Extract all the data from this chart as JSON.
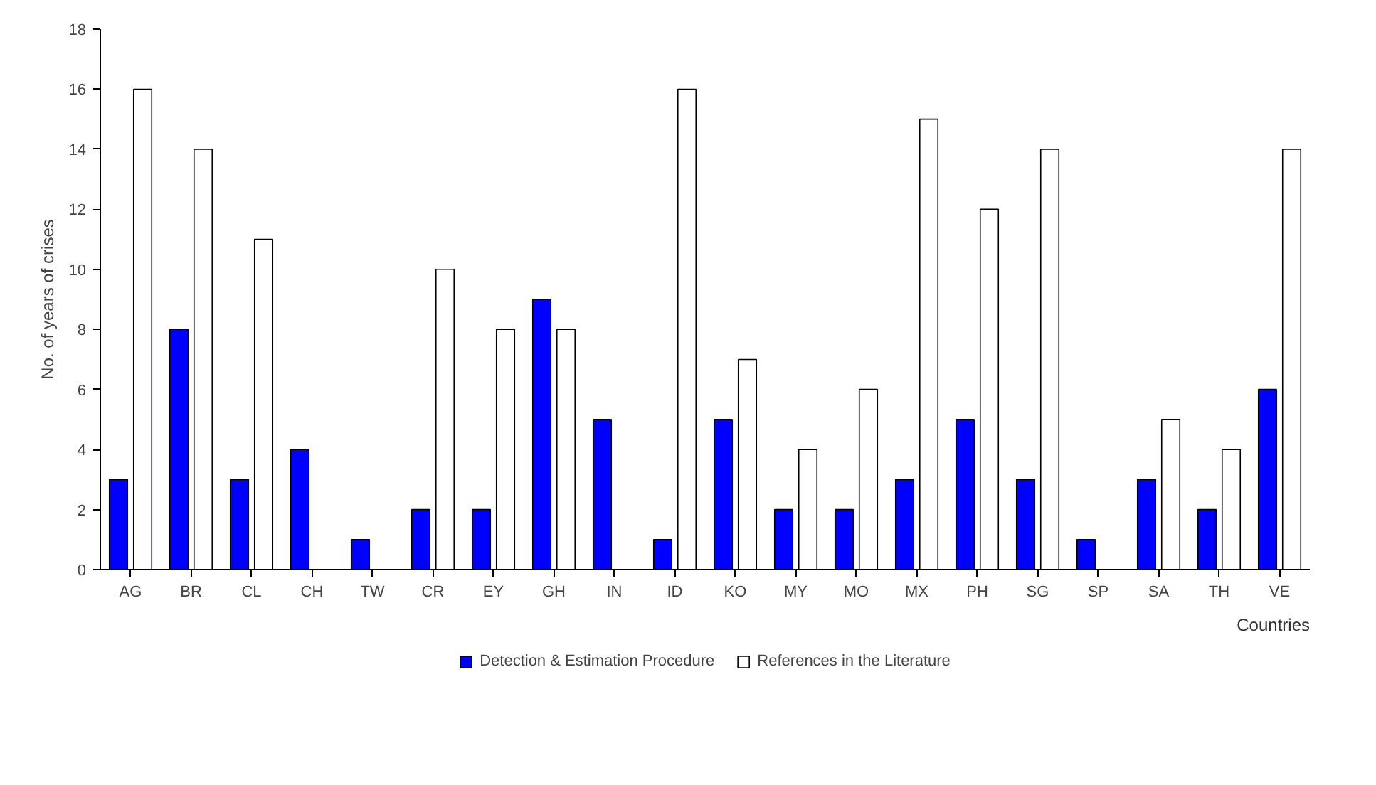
{
  "chart_data": {
    "type": "bar",
    "xlabel": "Countries",
    "ylabel": "No. of years of crises",
    "categories": [
      "AG",
      "BR",
      "CL",
      "CH",
      "TW",
      "CR",
      "EY",
      "GH",
      "IN",
      "ID",
      "KO",
      "MY",
      "MO",
      "MX",
      "PH",
      "SG",
      "SP",
      "SA",
      "TH",
      "VE"
    ],
    "series": [
      {
        "name": "Detection & Estimation Procedure",
        "color": "#0000ff",
        "values": [
          3,
          8,
          3,
          4,
          1,
          2,
          2,
          9,
          5,
          1,
          5,
          2,
          2,
          3,
          5,
          3,
          1,
          3,
          2,
          6
        ]
      },
      {
        "name": "References in the Literature",
        "color": "#ffffff",
        "values": [
          16,
          14,
          11,
          0,
          0,
          10,
          8,
          8,
          0,
          16,
          7,
          4,
          6,
          15,
          12,
          14,
          0,
          5,
          4,
          14
        ]
      }
    ],
    "ylim": [
      0,
      18
    ],
    "yticks": [
      0,
      2,
      4,
      6,
      8,
      10,
      12,
      14,
      16,
      18
    ],
    "grid": false,
    "legend": "bottom"
  }
}
